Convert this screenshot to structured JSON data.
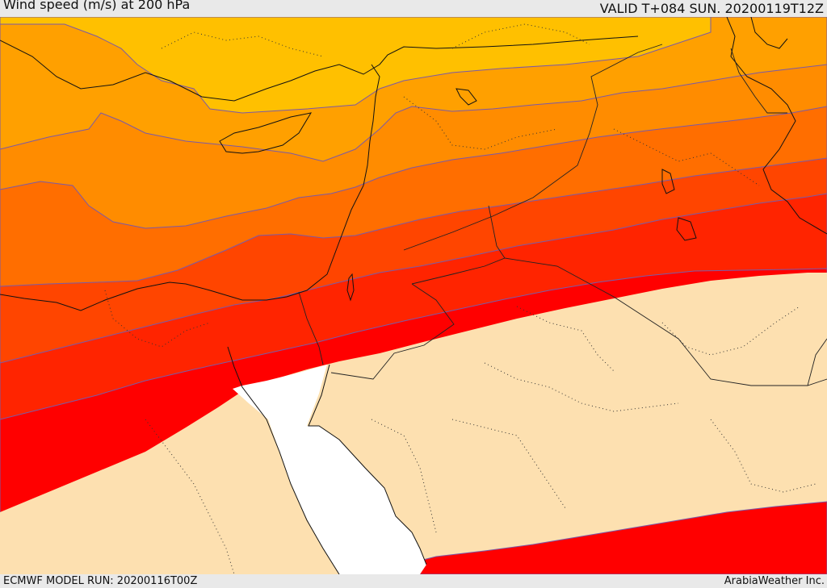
{
  "header": {
    "title": "Wind speed (m/s) at 200 hPa",
    "valid": "VALID T+084 SUN. 20200119T12Z"
  },
  "footer": {
    "model_run": "ECMWF MODEL RUN: 20200116T00Z",
    "credit": "ArabiaWeather Inc."
  },
  "map": {
    "background_land": "#fde0b0",
    "sea": "#ffffff",
    "band_colors": [
      "#ffc000",
      "#ffa000",
      "#ff8c00",
      "#ff6e00",
      "#ff4500",
      "#ff2400",
      "#ff0000"
    ]
  }
}
